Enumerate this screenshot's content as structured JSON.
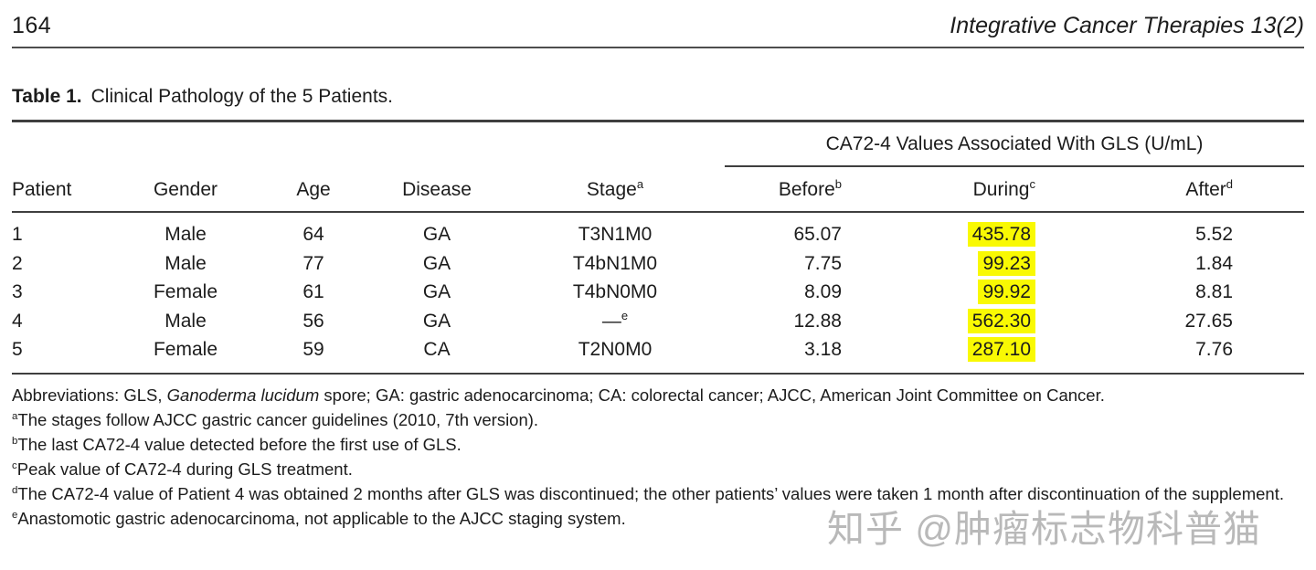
{
  "page_header": {
    "page_number": "164",
    "journal_title": "Integrative Cancer Therapies 13(2)"
  },
  "table": {
    "title_label": "Table 1.",
    "title_text": "Clinical Pathology of the 5 Patients.",
    "span_header": "CA72-4 Values Associated With GLS (U/mL)",
    "highlight_color": "#f9f903",
    "columns": [
      {
        "label": "Patient",
        "sup": ""
      },
      {
        "label": "Gender",
        "sup": ""
      },
      {
        "label": "Age",
        "sup": ""
      },
      {
        "label": "Disease",
        "sup": ""
      },
      {
        "label": "Stage",
        "sup": "a"
      },
      {
        "label": "Before",
        "sup": "b"
      },
      {
        "label": "During",
        "sup": "c"
      },
      {
        "label": "After",
        "sup": "d"
      }
    ],
    "rows": [
      {
        "patient": "1",
        "gender": "Male",
        "age": "64",
        "disease": "GA",
        "stage": "T3N1M0",
        "stage_sup": "",
        "before": "65.07",
        "during": "435.78",
        "after": "5.52"
      },
      {
        "patient": "2",
        "gender": "Male",
        "age": "77",
        "disease": "GA",
        "stage": "T4bN1M0",
        "stage_sup": "",
        "before": "7.75",
        "during": "99.23",
        "after": "1.84"
      },
      {
        "patient": "3",
        "gender": "Female",
        "age": "61",
        "disease": "GA",
        "stage": "T4bN0M0",
        "stage_sup": "",
        "before": "8.09",
        "during": "99.92",
        "after": "8.81"
      },
      {
        "patient": "4",
        "gender": "Male",
        "age": "56",
        "disease": "GA",
        "stage": "—",
        "stage_sup": "e",
        "before": "12.88",
        "during": "562.30",
        "after": "27.65"
      },
      {
        "patient": "5",
        "gender": "Female",
        "age": "59",
        "disease": "CA",
        "stage": "T2N0M0",
        "stage_sup": "",
        "before": "3.18",
        "during": "287.10",
        "after": "7.76"
      }
    ]
  },
  "footnotes": {
    "abbrev_prefix": "Abbreviations: GLS, ",
    "abbrev_italic": "Ganoderma lucidum",
    "abbrev_suffix": " spore; GA: gastric adenocarcinoma; CA: colorectal cancer; AJCC, American Joint Committee on Cancer.",
    "notes": [
      {
        "sup": "a",
        "text": "The stages follow AJCC gastric cancer guidelines (2010, 7th version)."
      },
      {
        "sup": "b",
        "text": "The last CA72-4 value detected before the first use of GLS."
      },
      {
        "sup": "c",
        "text": "Peak value of CA72-4 during GLS treatment."
      },
      {
        "sup": "d",
        "text": "The CA72-4 value of Patient 4 was obtained 2 months after GLS was discontinued; the other patients’ values were taken 1 month after discontinuation of the supplement."
      },
      {
        "sup": "e",
        "text": "Anastomotic gastric adenocarcinoma, not applicable to the AJCC staging system."
      }
    ]
  },
  "watermark": {
    "text": "知乎 @肿瘤标志物科普猫"
  }
}
